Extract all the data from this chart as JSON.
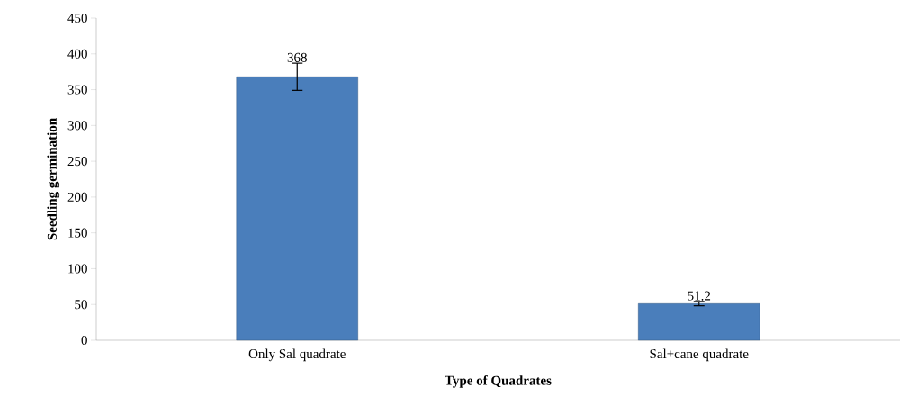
{
  "chart_data": {
    "type": "bar",
    "xlabel": "Type of Quadrates",
    "ylabel": "Seedling germination",
    "categories": [
      "Only Sal quadrate",
      "Sal+cane quadrate"
    ],
    "values": [
      368,
      51.2
    ],
    "errors": [
      19,
      3
    ],
    "color": "#4a7ebb",
    "ylim": [
      0,
      450
    ],
    "yticks": [
      0,
      50,
      100,
      150,
      200,
      250,
      300,
      350,
      400,
      450
    ],
    "data_labels": true,
    "grid": false
  }
}
